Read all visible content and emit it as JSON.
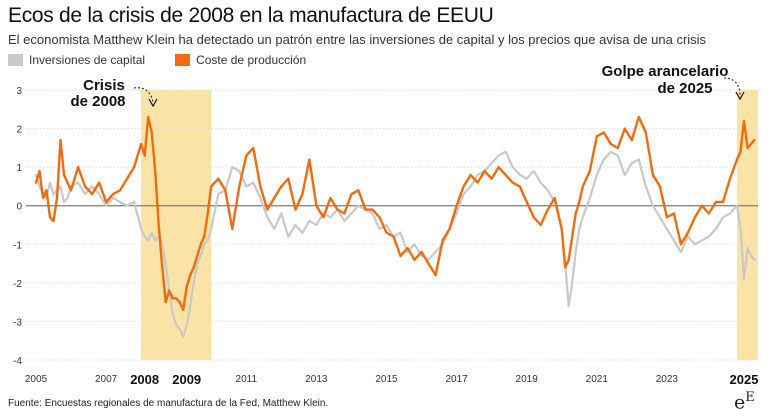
{
  "title": "Ecos de la crisis de 2008 en la manufactura de EEUU",
  "subtitle": "El economista Matthew Klein ha detectado un patrón entre las inversiones de capital y los precios que avisa de una crisis",
  "footer": "Fuente: Encuestas regionales de manufactura de la Fed, Matthew Klein.",
  "logo": {
    "main": "e",
    "sup": "E"
  },
  "colors": {
    "capital": "#c9c9c9",
    "coste": "#f26b0f",
    "highlight": "#fbe3a5",
    "zero": "#888888",
    "grid": "#dddddd"
  },
  "chart_data": {
    "type": "line",
    "ylim": [
      -4,
      3
    ],
    "xlim": [
      2005,
      2025.6
    ],
    "grid": "horizontal",
    "legend_position": "top-left",
    "yticks": [
      -4,
      -3,
      -2,
      -1,
      0,
      1,
      2,
      3
    ],
    "xticks": [
      2005,
      2007,
      2009,
      2011,
      2013,
      2015,
      2017,
      2019,
      2021,
      2023,
      2025
    ],
    "xticks_bold": [
      2008,
      2009,
      2025
    ],
    "highlights": [
      {
        "start": 2008.0,
        "end": 2010.0,
        "label_line1": "Crisis",
        "label_line2": "de 2008"
      },
      {
        "start": 2025.0,
        "end": 2025.6,
        "label_line1": "Golpe arancelario",
        "label_line2": "de 2025"
      }
    ],
    "series": [
      {
        "name": "Inversiones de capital",
        "x": [
          2005.0,
          2005.1,
          2005.2,
          2005.3,
          2005.4,
          2005.5,
          2005.6,
          2005.7,
          2005.8,
          2005.9,
          2006.0,
          2006.2,
          2006.4,
          2006.6,
          2006.8,
          2007.0,
          2007.2,
          2007.4,
          2007.6,
          2007.8,
          2008.0,
          2008.1,
          2008.2,
          2008.3,
          2008.4,
          2008.5,
          2008.6,
          2008.7,
          2008.8,
          2008.9,
          2009.0,
          2009.1,
          2009.2,
          2009.3,
          2009.4,
          2009.5,
          2009.6,
          2009.7,
          2009.8,
          2009.9,
          2010.0,
          2010.2,
          2010.4,
          2010.6,
          2010.8,
          2011.0,
          2011.2,
          2011.4,
          2011.6,
          2011.8,
          2012.0,
          2012.2,
          2012.4,
          2012.6,
          2012.8,
          2013.0,
          2013.2,
          2013.4,
          2013.6,
          2013.8,
          2014.0,
          2014.2,
          2014.4,
          2014.6,
          2014.8,
          2015.0,
          2015.2,
          2015.4,
          2015.6,
          2015.8,
          2016.0,
          2016.2,
          2016.4,
          2016.6,
          2016.8,
          2017.0,
          2017.2,
          2017.4,
          2017.6,
          2017.8,
          2018.0,
          2018.2,
          2018.4,
          2018.6,
          2018.8,
          2019.0,
          2019.2,
          2019.4,
          2019.6,
          2019.8,
          2020.0,
          2020.1,
          2020.2,
          2020.3,
          2020.4,
          2020.5,
          2020.6,
          2020.8,
          2021.0,
          2021.2,
          2021.4,
          2021.6,
          2021.8,
          2022.0,
          2022.2,
          2022.4,
          2022.6,
          2022.8,
          2023.0,
          2023.2,
          2023.4,
          2023.6,
          2023.8,
          2024.0,
          2024.2,
          2024.4,
          2024.6,
          2024.8,
          2025.0,
          2025.1,
          2025.2,
          2025.3,
          2025.4,
          2025.5
        ],
        "values": [
          0.8,
          0.5,
          0.3,
          0.2,
          0.6,
          0.3,
          0.4,
          0.5,
          0.1,
          0.2,
          0.5,
          0.6,
          0.3,
          0.5,
          0.3,
          0.0,
          0.2,
          0.1,
          0.0,
          0.1,
          -0.6,
          -0.8,
          -0.9,
          -0.7,
          -0.9,
          -0.8,
          -1.0,
          -1.5,
          -2.2,
          -2.8,
          -3.1,
          -3.2,
          -3.4,
          -3.1,
          -2.6,
          -2.0,
          -1.5,
          -1.3,
          -1.0,
          -0.9,
          -0.6,
          0.3,
          0.4,
          1.0,
          0.9,
          0.5,
          0.6,
          0.2,
          -0.3,
          -0.6,
          -0.2,
          -0.8,
          -0.5,
          -0.7,
          -0.4,
          -0.5,
          -0.2,
          -0.3,
          -0.1,
          -0.4,
          -0.2,
          0.0,
          -0.1,
          -0.2,
          -0.6,
          -0.5,
          -0.8,
          -0.7,
          -1.2,
          -1.0,
          -1.3,
          -1.4,
          -1.2,
          -1.0,
          -0.6,
          -0.2,
          0.3,
          0.5,
          0.8,
          0.9,
          1.1,
          1.3,
          1.4,
          1.0,
          0.8,
          0.7,
          0.9,
          0.6,
          0.4,
          0.1,
          -0.6,
          -1.5,
          -2.6,
          -2.0,
          -1.2,
          -0.6,
          -0.3,
          0.2,
          0.8,
          1.2,
          1.4,
          1.3,
          0.8,
          1.1,
          1.2,
          0.5,
          0.0,
          -0.3,
          -0.6,
          -0.9,
          -1.2,
          -0.8,
          -1.0,
          -0.9,
          -0.8,
          -0.6,
          -0.3,
          -0.2,
          0.0,
          -0.6,
          -1.9,
          -1.1,
          -1.3,
          -1.4
        ]
      },
      {
        "name": "Coste de producción",
        "x": [
          2005.0,
          2005.1,
          2005.2,
          2005.3,
          2005.4,
          2005.5,
          2005.6,
          2005.7,
          2005.8,
          2005.9,
          2006.0,
          2006.2,
          2006.4,
          2006.6,
          2006.8,
          2007.0,
          2007.2,
          2007.4,
          2007.6,
          2007.8,
          2008.0,
          2008.1,
          2008.2,
          2008.3,
          2008.4,
          2008.5,
          2008.6,
          2008.7,
          2008.8,
          2008.9,
          2009.0,
          2009.1,
          2009.2,
          2009.3,
          2009.4,
          2009.5,
          2009.6,
          2009.7,
          2009.8,
          2009.9,
          2010.0,
          2010.2,
          2010.4,
          2010.6,
          2010.8,
          2011.0,
          2011.2,
          2011.4,
          2011.6,
          2011.8,
          2012.0,
          2012.2,
          2012.4,
          2012.6,
          2012.8,
          2013.0,
          2013.2,
          2013.4,
          2013.6,
          2013.8,
          2014.0,
          2014.2,
          2014.4,
          2014.6,
          2014.8,
          2015.0,
          2015.2,
          2015.4,
          2015.6,
          2015.8,
          2016.0,
          2016.2,
          2016.4,
          2016.6,
          2016.8,
          2017.0,
          2017.2,
          2017.4,
          2017.6,
          2017.8,
          2018.0,
          2018.2,
          2018.4,
          2018.6,
          2018.8,
          2019.0,
          2019.2,
          2019.4,
          2019.6,
          2019.8,
          2020.0,
          2020.1,
          2020.2,
          2020.3,
          2020.4,
          2020.5,
          2020.6,
          2020.8,
          2021.0,
          2021.2,
          2021.4,
          2021.6,
          2021.8,
          2022.0,
          2022.2,
          2022.4,
          2022.6,
          2022.8,
          2023.0,
          2023.2,
          2023.4,
          2023.6,
          2023.8,
          2024.0,
          2024.2,
          2024.4,
          2024.6,
          2024.8,
          2025.0,
          2025.1,
          2025.2,
          2025.3,
          2025.4,
          2025.5
        ],
        "values": [
          0.6,
          0.9,
          0.2,
          0.4,
          -0.3,
          -0.4,
          0.2,
          1.7,
          0.8,
          0.6,
          0.4,
          1.0,
          0.5,
          0.3,
          0.6,
          0.1,
          0.3,
          0.4,
          0.7,
          1.0,
          1.6,
          1.3,
          2.3,
          1.9,
          0.9,
          -0.5,
          -1.6,
          -2.5,
          -2.2,
          -2.4,
          -2.4,
          -2.5,
          -2.7,
          -2.1,
          -1.8,
          -1.6,
          -1.3,
          -1.0,
          -0.8,
          -0.2,
          0.5,
          0.7,
          0.4,
          -0.6,
          0.5,
          1.3,
          1.5,
          0.5,
          -0.1,
          0.2,
          0.5,
          0.7,
          -0.1,
          0.3,
          1.2,
          0.0,
          -0.3,
          0.2,
          -0.1,
          -0.2,
          0.3,
          0.4,
          -0.1,
          -0.1,
          -0.3,
          -0.7,
          -0.8,
          -1.3,
          -1.1,
          -1.4,
          -1.2,
          -1.5,
          -1.8,
          -0.9,
          -0.6,
          0.0,
          0.5,
          0.8,
          0.6,
          0.9,
          0.7,
          1.0,
          0.8,
          0.6,
          0.5,
          0.1,
          -0.3,
          -0.5,
          -0.1,
          0.2,
          -0.6,
          -1.6,
          -1.4,
          -0.8,
          -0.2,
          0.1,
          0.5,
          0.9,
          1.8,
          1.9,
          1.6,
          1.5,
          2.0,
          1.7,
          2.3,
          1.9,
          0.8,
          0.5,
          -0.3,
          -0.2,
          -1.0,
          -0.7,
          -0.3,
          0.0,
          -0.2,
          0.1,
          0.1,
          0.7,
          1.2,
          1.4,
          2.2,
          1.5,
          1.6,
          1.7
        ]
      }
    ]
  }
}
